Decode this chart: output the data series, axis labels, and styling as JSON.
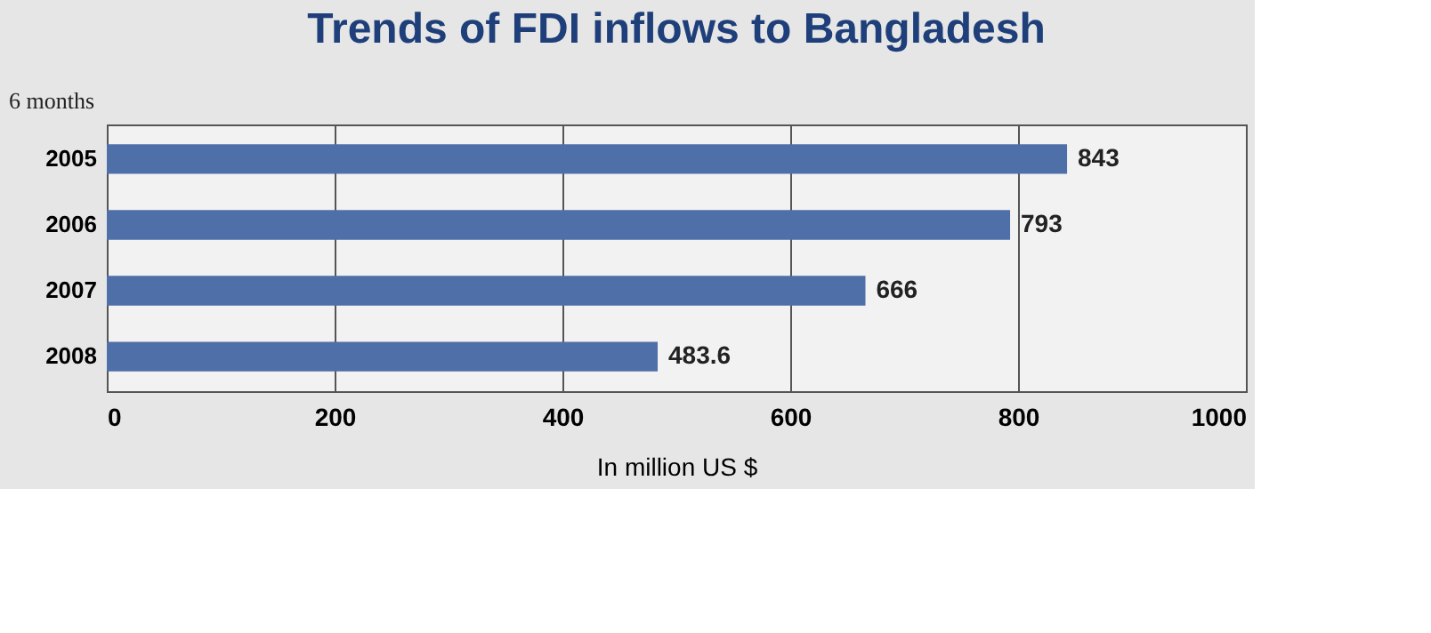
{
  "chart_data": {
    "type": "bar",
    "orientation": "horizontal",
    "title": "Trends of FDI inflows to Bangladesh",
    "xlabel": "In million US $",
    "annotations": [
      "6 months"
    ],
    "categories": [
      "2005",
      "2006",
      "2007",
      "2008"
    ],
    "values": [
      843,
      793,
      666,
      483.6
    ],
    "color": "#4f6fa8",
    "data_labels": true,
    "xlim": [
      0,
      1000
    ],
    "xticks": [
      0,
      200,
      400,
      600,
      800,
      1000
    ],
    "grid": "x"
  }
}
